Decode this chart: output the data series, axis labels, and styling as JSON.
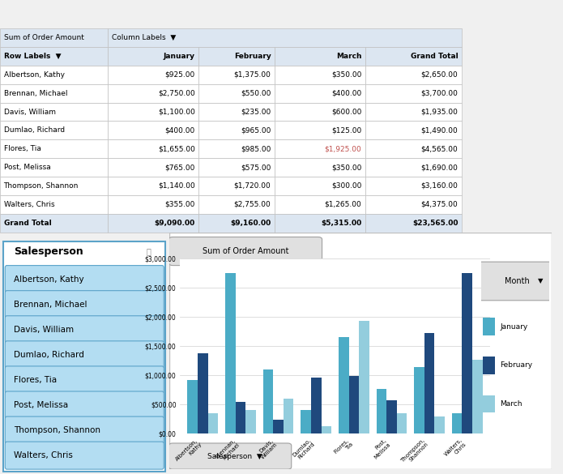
{
  "table": {
    "header_bg": "#dce6f1",
    "header_text": "#000000",
    "col_labels_bg": "#dce6f1",
    "grand_total_bg": "#dce6f1",
    "row_labels": [
      "Albertson, Kathy",
      "Brennan, Michael",
      "Davis, William",
      "Dumlao, Richard",
      "Flores, Tia",
      "Post, Melissa",
      "Thompson, Shannon",
      "Walters, Chris"
    ],
    "columns": [
      "January",
      "February",
      "March",
      "Grand Total"
    ],
    "data": [
      [
        925.0,
        1375.0,
        350.0,
        2650.0
      ],
      [
        2750.0,
        550.0,
        400.0,
        3700.0
      ],
      [
        1100.0,
        235.0,
        600.0,
        1935.0
      ],
      [
        400.0,
        965.0,
        125.0,
        1490.0
      ],
      [
        1655.0,
        985.0,
        1925.0,
        4565.0
      ],
      [
        765.0,
        575.0,
        350.0,
        1690.0
      ],
      [
        1140.0,
        1720.0,
        300.0,
        3160.0
      ],
      [
        355.0,
        2755.0,
        1265.0,
        4375.0
      ]
    ],
    "grand_total_row": [
      9090.0,
      9160.0,
      5315.0,
      23565.0
    ],
    "pivot_header": "Sum of Order Amount",
    "column_header": "Column Labels",
    "row_labels_header": "Row Labels"
  },
  "slicer": {
    "title": "Salesperson",
    "names": [
      "Albertson, Kathy",
      "Brennan, Michael",
      "Davis, William",
      "Dumlao, Richard",
      "Flores, Tia",
      "Post, Melissa",
      "Thompson, Shannon",
      "Walters, Chris"
    ],
    "bg_color": "#b3ddf2",
    "border_color": "#5ba3c9",
    "title_bg": "#ffffff",
    "font_color": "#000000"
  },
  "chart": {
    "title": "Sum of Order Amount",
    "bg_color": "#ffffff",
    "plot_bg": "#ffffff",
    "grid_color": "#d0d0d0",
    "bar_colors": [
      "#4bacc6",
      "#1f497d",
      "#93cddd"
    ],
    "legend_title": "Month",
    "legend_labels": [
      "January",
      "February",
      "March"
    ],
    "categories": [
      "Albertson,\nKathy",
      "Brennan,\nMichael",
      "Davis,\nWilliam",
      "Dumlao,\nRichard",
      "Flores,\nTia",
      "Post,\nMelissa",
      "Thompson,\nShannon",
      "Walters,\nChris"
    ],
    "january": [
      925,
      2750,
      1100,
      400,
      1655,
      765,
      1140,
      355
    ],
    "february": [
      1375,
      550,
      235,
      965,
      985,
      575,
      1720,
      2755
    ],
    "march": [
      350,
      400,
      600,
      125,
      1925,
      350,
      300,
      1265
    ],
    "ylim": [
      0,
      3000
    ],
    "yticks": [
      0,
      500,
      1000,
      1500,
      2000,
      2500,
      3000
    ],
    "ytick_labels": [
      "$0.00",
      "$500.00",
      "$1,000.00",
      "$1,500.00",
      "$2,000.00",
      "$2,500.00",
      "$3,000.00"
    ],
    "salesperson_btn": "Salesperson"
  },
  "overall_bg": "#f0f0f0",
  "cell_border_color": "#c0c0c0",
  "excel_bg": "#ffffff"
}
